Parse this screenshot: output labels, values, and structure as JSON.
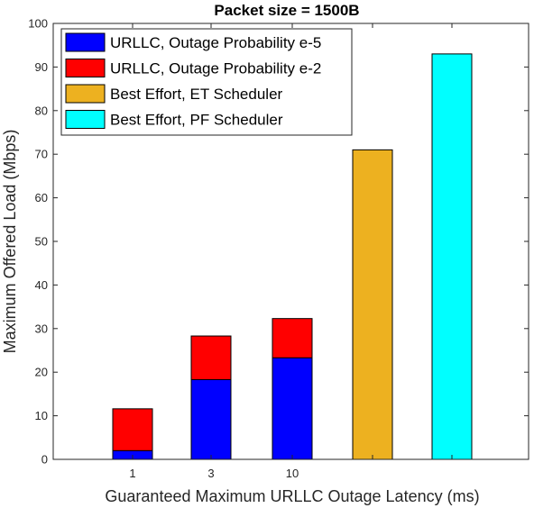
{
  "chart_data": {
    "type": "bar",
    "title": "Packet size = 1500B",
    "xlabel": "Guaranteed Maximum URLLC Outage Latency (ms)",
    "ylabel": "Maximum Offered Load (Mbps)",
    "ylim": [
      0,
      100
    ],
    "yticks": [
      "0",
      "10",
      "20",
      "30",
      "40",
      "50",
      "60",
      "70",
      "80",
      "90",
      "100"
    ],
    "categories": [
      "1",
      "3",
      "10",
      "",
      ""
    ],
    "grid": false,
    "legend_position": "top-left",
    "series": [
      {
        "name": "URLLC, Outage Probability e-5",
        "color": "#0000ff",
        "values": [
          2,
          18.3,
          23.3,
          null,
          null
        ]
      },
      {
        "name": "URLLC, Outage Probability e-2",
        "color": "#ff0000",
        "values": [
          9.6,
          10,
          9,
          null,
          null
        ]
      },
      {
        "name": "Best Effort, ET Scheduler",
        "color": "#edb120",
        "values": [
          null,
          null,
          null,
          71,
          null
        ]
      },
      {
        "name": "Best Effort, PF Scheduler",
        "color": "#00ffff",
        "values": [
          null,
          null,
          null,
          null,
          93
        ]
      }
    ]
  }
}
